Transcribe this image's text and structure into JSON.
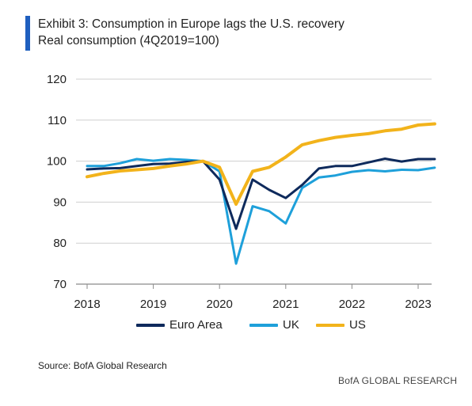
{
  "header": {
    "title": "Exhibit 3: Consumption in Europe lags the U.S. recovery",
    "subtitle": "Real consumption (4Q2019=100)",
    "accent_color": "#1f5fbf"
  },
  "footer": {
    "source": "Source: BofA Global Research",
    "brand": "BofA GLOBAL RESEARCH"
  },
  "chart_data": {
    "type": "line",
    "x": [
      "2018Q1",
      "2018Q2",
      "2018Q3",
      "2018Q4",
      "2019Q1",
      "2019Q2",
      "2019Q3",
      "2019Q4",
      "2020Q1",
      "2020Q2",
      "2020Q3",
      "2020Q4",
      "2021Q1",
      "2021Q2",
      "2021Q3",
      "2021Q4",
      "2022Q1",
      "2022Q2",
      "2022Q3",
      "2022Q4",
      "2023Q1",
      "2023Q2"
    ],
    "series": [
      {
        "name": "Euro Area",
        "color": "#0e2a5c",
        "values": [
          98,
          98.2,
          98.3,
          98.8,
          99.3,
          99.4,
          99.8,
          100,
          95.5,
          83.5,
          95.5,
          93,
          91,
          94.2,
          98.2,
          98.8,
          98.8,
          99.7,
          100.6,
          99.9,
          100.5,
          100.5
        ]
      },
      {
        "name": "UK",
        "color": "#1ea0da",
        "values": [
          98.8,
          98.8,
          99.5,
          100.5,
          100.1,
          100.5,
          100.3,
          100,
          97.5,
          75,
          89,
          87.8,
          84.8,
          93.5,
          96,
          96.5,
          97.4,
          97.8,
          97.5,
          97.9,
          97.8,
          98.4
        ]
      },
      {
        "name": "US",
        "color": "#f2b31b",
        "values": [
          96.2,
          97,
          97.6,
          97.9,
          98.2,
          98.8,
          99.3,
          100,
          98.5,
          89.5,
          97.5,
          98.5,
          101,
          104,
          105,
          105.8,
          106.3,
          106.7,
          107.4,
          107.8,
          108.8,
          109.1
        ]
      }
    ],
    "xticks": [
      "2018",
      "2019",
      "2020",
      "2021",
      "2022",
      "2023"
    ],
    "yticks": [
      70,
      80,
      90,
      100,
      110,
      120
    ],
    "ylim": [
      70,
      120
    ],
    "grid": true,
    "legend": "bottom"
  }
}
